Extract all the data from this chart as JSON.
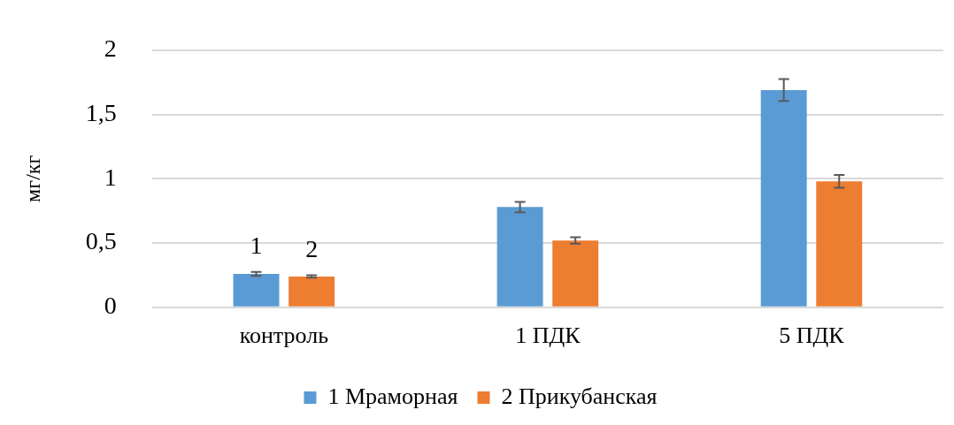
{
  "chart_data": {
    "type": "bar",
    "ylabel": "мг/кг",
    "categories": [
      "контроль",
      "1 ПДК",
      "5 ПДК"
    ],
    "series": [
      {
        "name": "1 Мраморная",
        "color": "#5b9bd5",
        "values": [
          0.26,
          0.78,
          1.69
        ],
        "errors": [
          0.015,
          0.04,
          0.085
        ]
      },
      {
        "name": "2 Прикубанская",
        "color": "#ed7d31",
        "values": [
          0.24,
          0.52,
          0.98
        ],
        "errors": [
          0.01,
          0.025,
          0.05
        ]
      }
    ],
    "annotations": [
      "1",
      "2"
    ],
    "ylim": [
      0,
      2
    ],
    "yticks": [
      0,
      {
        "value": 0.5,
        "label": "0,5"
      },
      1,
      {
        "value": 1.5,
        "label": "1,5"
      },
      2
    ],
    "grid": "y",
    "legend": "bottom"
  }
}
